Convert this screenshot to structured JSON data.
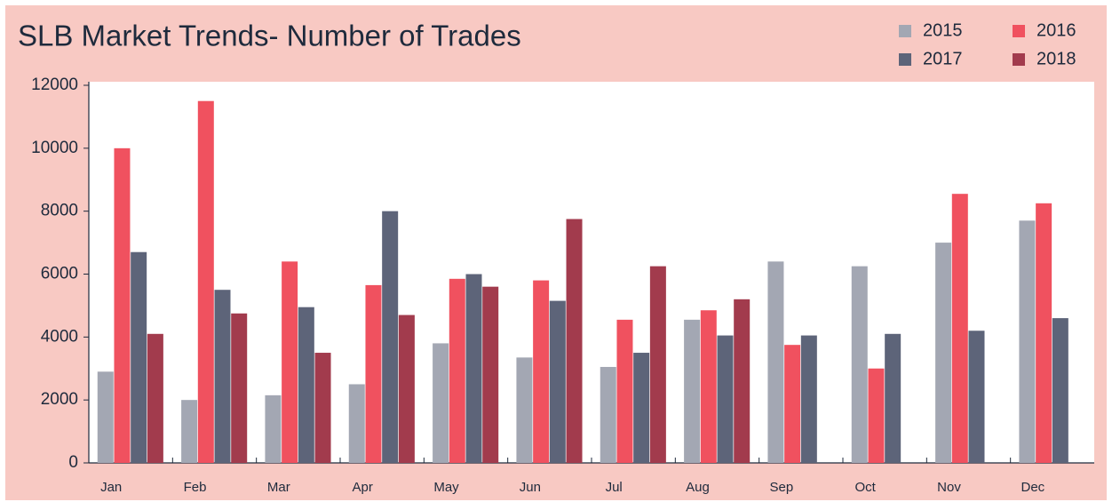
{
  "chart_data": {
    "type": "bar",
    "title": "SLB Market Trends- Number of Trades",
    "categories": [
      "Jan",
      "Feb",
      "Mar",
      "Apr",
      "May",
      "Jun",
      "Jul",
      "Aug",
      "Sep",
      "Oct",
      "Nov",
      "Dec"
    ],
    "series": [
      {
        "name": "2015",
        "color": "#a3a7b3",
        "values": [
          2900,
          2000,
          2150,
          2500,
          3800,
          3350,
          3050,
          4550,
          6400,
          6250,
          7000,
          7700
        ]
      },
      {
        "name": "2016",
        "color": "#f0515f",
        "values": [
          10000,
          11500,
          6400,
          5650,
          5850,
          5800,
          4550,
          4850,
          3750,
          3000,
          8550,
          8250
        ]
      },
      {
        "name": "2017",
        "color": "#5d6479",
        "values": [
          6700,
          5500,
          4950,
          8000,
          6000,
          5150,
          3500,
          4050,
          4050,
          4100,
          4200,
          4600
        ]
      },
      {
        "name": "2018",
        "color": "#a23b4d",
        "values": [
          4100,
          4750,
          3500,
          4700,
          5600,
          7750,
          6250,
          5200,
          null,
          null,
          null,
          null
        ]
      }
    ],
    "ylim": [
      0,
      12000
    ],
    "yticks": [
      0,
      2000,
      4000,
      6000,
      8000,
      10000,
      12000
    ],
    "legend": "top-right"
  }
}
